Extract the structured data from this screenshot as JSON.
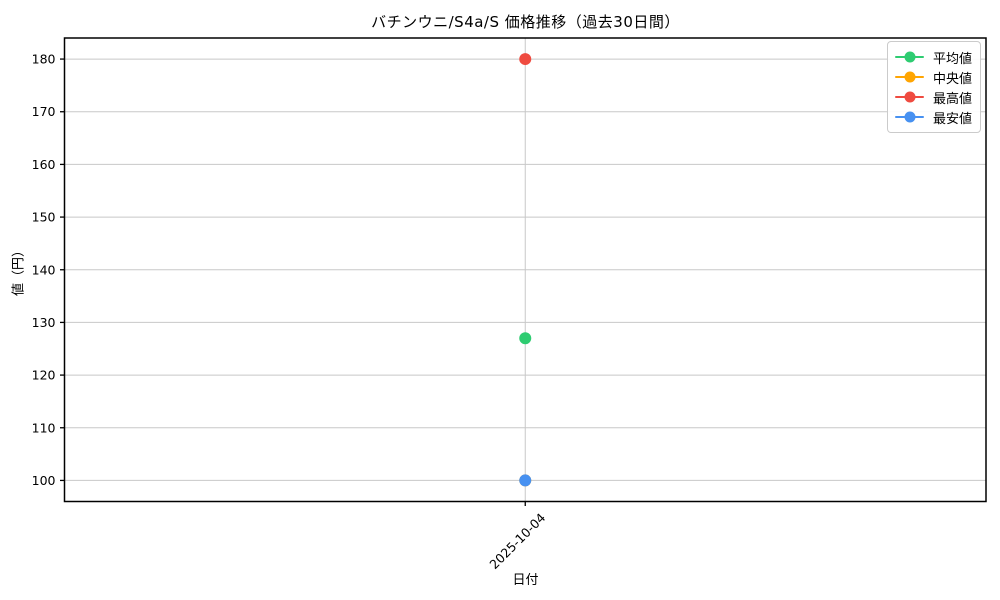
{
  "chart_data": {
    "type": "line",
    "title": "バチンウニ/S4a/S 価格推移（過去30日間）",
    "xlabel": "日付",
    "ylabel": "値（円）",
    "x": [
      "2025-10-04"
    ],
    "series": [
      {
        "key": "average",
        "name": "平均値",
        "color": "#2ecc71",
        "values": [
          127
        ]
      },
      {
        "key": "median",
        "name": "中央値",
        "color": "#ffa502",
        "values": [
          100
        ],
        "occluded_by": "min"
      },
      {
        "key": "max",
        "name": "最高値",
        "color": "#ef4b40",
        "values": [
          180
        ]
      },
      {
        "key": "min",
        "name": "最安値",
        "color": "#4791f1",
        "values": [
          100
        ]
      }
    ],
    "ylim": [
      96,
      184
    ],
    "yticks": [
      100,
      110,
      120,
      130,
      140,
      150,
      160,
      170,
      180
    ],
    "grid": true,
    "grid_color": "#c8c8c8",
    "spine_color": "#000000",
    "legend_position": "upper-right",
    "marker": "circle"
  }
}
